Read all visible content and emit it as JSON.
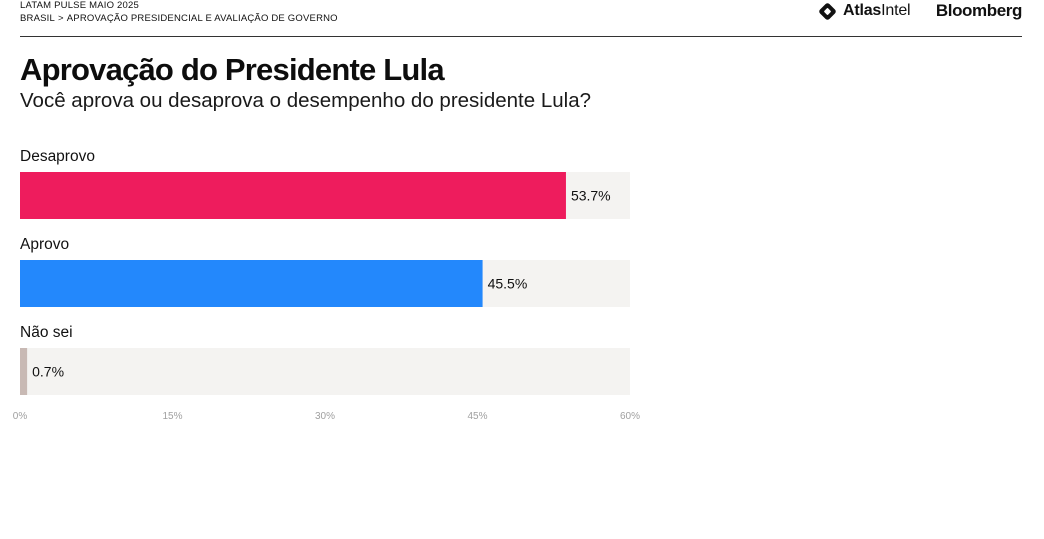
{
  "header": {
    "eyebrow": "LATAM PULSE MAIO 2025",
    "breadcrumb": {
      "country": "BRASIL",
      "separator": ">",
      "section": "APROVAÇÃO PRESIDENCIAL E AVALIAÇÃO DE GOVERNO"
    },
    "logos": {
      "atlas_strong": "Atlas",
      "atlas_light": "Intel",
      "bloomberg": "Bloomberg"
    }
  },
  "chart_data": {
    "type": "bar",
    "orientation": "horizontal",
    "title": "Aprovação do Presidente Lula",
    "subtitle": "Você aprova ou desaprova o desempenho do presidente Lula?",
    "categories": [
      "Desaprovo",
      "Aprovo",
      "Não sei"
    ],
    "values": [
      53.7,
      45.5,
      0.7
    ],
    "value_labels": [
      "53.7%",
      "45.5%",
      "0.7%"
    ],
    "colors": [
      "#ee1c5d",
      "#2388fc",
      "#c8b9b4"
    ],
    "track_color": "#f4f3f1",
    "xlim": [
      0,
      60
    ],
    "ticks": [
      0,
      15,
      30,
      45,
      60
    ],
    "tick_labels": [
      "0%",
      "15%",
      "30%",
      "45%",
      "60%"
    ],
    "grid": false,
    "legend": "none"
  }
}
